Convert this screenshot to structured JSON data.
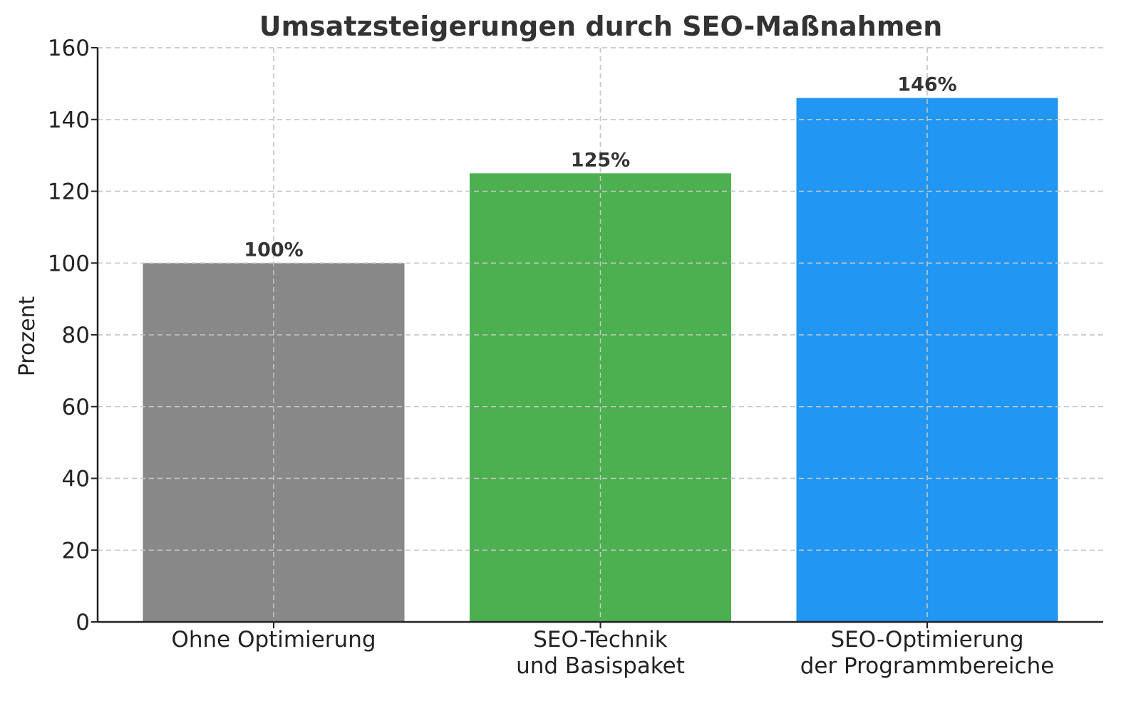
{
  "chart_data": {
    "type": "bar",
    "title": "Umsatzsteigerungen durch SEO-Maßnahmen",
    "xlabel": "",
    "ylabel": "Prozent",
    "ylim": [
      0,
      160
    ],
    "yticks": [
      0,
      20,
      40,
      60,
      80,
      100,
      120,
      140,
      160
    ],
    "grid": true,
    "categories": [
      [
        "Ohne Optimierung"
      ],
      [
        "SEO-Technik",
        "und Basispaket"
      ],
      [
        "SEO-Optimierung",
        "der Programmbereiche"
      ]
    ],
    "values": [
      100,
      125,
      146
    ],
    "data_labels": [
      "100%",
      "125%",
      "146%"
    ],
    "colors": [
      "#888888",
      "#4caf50",
      "#2196f3"
    ]
  }
}
